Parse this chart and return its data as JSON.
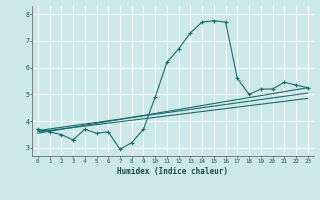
{
  "xlabel": "Humidex (Indice chaleur)",
  "ylabel": "",
  "bg_color": "#cce8e8",
  "line_color": "#1a6b6b",
  "grid_color": "#ffffff",
  "xlim": [
    -0.5,
    23.5
  ],
  "ylim": [
    2.7,
    8.3
  ],
  "yticks": [
    3,
    4,
    5,
    6,
    7,
    8
  ],
  "xticks": [
    0,
    1,
    2,
    3,
    4,
    5,
    6,
    7,
    8,
    9,
    10,
    11,
    12,
    13,
    14,
    15,
    16,
    17,
    18,
    19,
    20,
    21,
    22,
    23
  ],
  "main_line": {
    "x": [
      0,
      1,
      2,
      3,
      4,
      5,
      6,
      7,
      8,
      9,
      10,
      11,
      12,
      13,
      14,
      15,
      16,
      17,
      18,
      19,
      20,
      21,
      22,
      23
    ],
    "y": [
      3.7,
      3.6,
      3.5,
      3.3,
      3.7,
      3.55,
      3.6,
      2.95,
      3.2,
      3.7,
      4.9,
      6.2,
      6.7,
      7.3,
      7.7,
      7.75,
      7.7,
      5.6,
      5.0,
      5.2,
      5.2,
      5.45,
      5.35,
      5.25
    ]
  },
  "linear_lines": [
    {
      "x": [
        0,
        23
      ],
      "y": [
        3.65,
        5.05
      ]
    },
    {
      "x": [
        0,
        23
      ],
      "y": [
        3.6,
        4.85
      ]
    },
    {
      "x": [
        0,
        23
      ],
      "y": [
        3.55,
        5.25
      ]
    }
  ]
}
